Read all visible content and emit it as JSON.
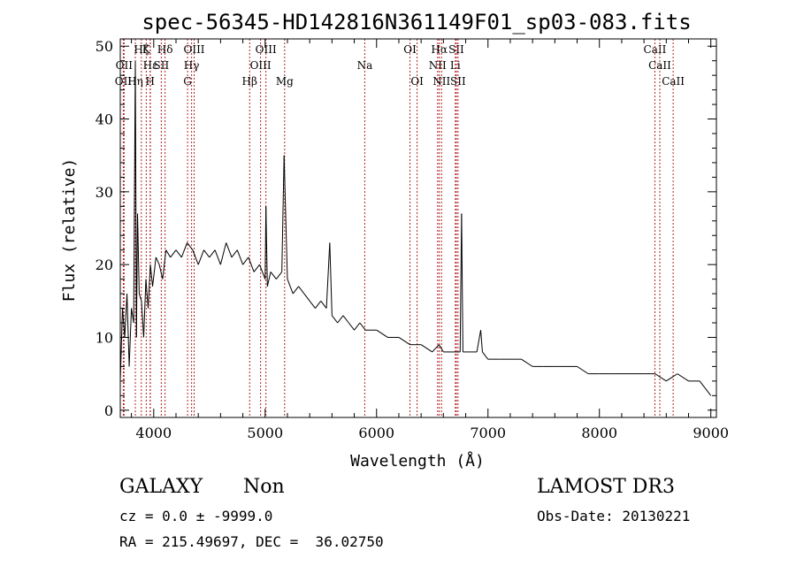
{
  "chart_data": {
    "type": "line",
    "title": "spec-56345-HD142816N361149F01_sp03-083.fits",
    "xlabel": "Wavelength (Å)",
    "ylabel": "Flux (relative)",
    "xlim": [
      3700,
      9050
    ],
    "ylim": [
      -1,
      51
    ],
    "xticks": [
      4000,
      5000,
      6000,
      7000,
      8000,
      9000
    ],
    "yticks": [
      0,
      10,
      20,
      30,
      40,
      50
    ],
    "xtick_labels": [
      "4000",
      "5000",
      "6000",
      "7000",
      "8000",
      "9000"
    ],
    "ytick_labels": [
      "0",
      "10",
      "20",
      "30",
      "40",
      "50"
    ],
    "series": [
      {
        "name": "flux",
        "x": [
          3700,
          3720,
          3740,
          3760,
          3780,
          3800,
          3820,
          3835,
          3845,
          3855,
          3870,
          3890,
          3910,
          3930,
          3950,
          3970,
          3990,
          4020,
          4050,
          4080,
          4110,
          4150,
          4200,
          4250,
          4300,
          4350,
          4400,
          4450,
          4500,
          4550,
          4600,
          4650,
          4700,
          4750,
          4800,
          4850,
          4900,
          4950,
          5000,
          5007,
          5020,
          5050,
          5100,
          5150,
          5170,
          5200,
          5250,
          5300,
          5350,
          5400,
          5450,
          5500,
          5550,
          5580,
          5600,
          5650,
          5700,
          5750,
          5800,
          5850,
          5900,
          5950,
          6000,
          6100,
          6200,
          6300,
          6400,
          6500,
          6560,
          6600,
          6700,
          6750,
          6763,
          6775,
          6800,
          6850,
          6900,
          6935,
          6950,
          7000,
          7100,
          7200,
          7300,
          7400,
          7500,
          7600,
          7700,
          7800,
          7900,
          8000,
          8100,
          8200,
          8300,
          8400,
          8500,
          8600,
          8700,
          8800,
          8900,
          8950,
          9000
        ],
        "y": [
          4,
          14,
          10,
          16,
          6,
          14,
          12,
          48,
          10,
          27,
          16,
          15,
          10,
          18,
          14,
          20,
          17,
          21,
          20,
          18,
          22,
          21,
          22,
          21,
          23,
          22,
          20,
          22,
          21,
          22,
          20,
          23,
          21,
          22,
          20,
          21,
          19,
          20,
          18,
          28,
          17,
          19,
          18,
          19,
          35,
          18,
          16,
          17,
          16,
          15,
          14,
          15,
          14,
          23,
          13,
          12,
          13,
          12,
          11,
          12,
          11,
          11,
          11,
          10,
          10,
          9,
          9,
          8,
          9,
          8,
          8,
          8,
          27,
          8,
          8,
          8,
          8,
          11,
          8,
          7,
          7,
          7,
          7,
          6,
          6,
          6,
          6,
          6,
          5,
          5,
          5,
          5,
          5,
          5,
          5,
          4,
          5,
          4,
          4,
          3,
          2
        ]
      }
    ],
    "line_marks": [
      {
        "wavelength": 3727,
        "label": "OII",
        "row": 2
      },
      {
        "wavelength": 3734,
        "label": "OII",
        "row": 1
      },
      {
        "wavelength": 3835,
        "label": "Hη",
        "row": 2
      },
      {
        "wavelength": 3889,
        "label": "Hζ",
        "row": 0
      },
      {
        "wavelength": 3933,
        "label": "K",
        "row": 0
      },
      {
        "wavelength": 3968,
        "label": "H",
        "row": 2
      },
      {
        "wavelength": 3970,
        "label": "Hε",
        "row": 1
      },
      {
        "wavelength": 4068,
        "label": "SII",
        "row": 1
      },
      {
        "wavelength": 4102,
        "label": "Hδ",
        "row": 0
      },
      {
        "wavelength": 4304,
        "label": "G",
        "row": 2
      },
      {
        "wavelength": 4340,
        "label": "Hγ",
        "row": 1
      },
      {
        "wavelength": 4363,
        "label": "OIII",
        "row": 0
      },
      {
        "wavelength": 4861,
        "label": "Hβ",
        "row": 2
      },
      {
        "wavelength": 4959,
        "label": "OIII",
        "row": 1
      },
      {
        "wavelength": 5007,
        "label": "OIII",
        "row": 0
      },
      {
        "wavelength": 5175,
        "label": "Mg",
        "row": 2
      },
      {
        "wavelength": 5894,
        "label": "Na",
        "row": 1
      },
      {
        "wavelength": 6300,
        "label": "OI",
        "row": 0
      },
      {
        "wavelength": 6364,
        "label": "OI",
        "row": 2
      },
      {
        "wavelength": 6548,
        "label": "NII",
        "row": 1
      },
      {
        "wavelength": 6563,
        "label": "Hα",
        "row": 0
      },
      {
        "wavelength": 6583,
        "label": "NII",
        "row": 2
      },
      {
        "wavelength": 6707,
        "label": "Li",
        "row": 1
      },
      {
        "wavelength": 6716,
        "label": "SII",
        "row": 0
      },
      {
        "wavelength": 6731,
        "label": "SII",
        "row": 2
      },
      {
        "wavelength": 8498,
        "label": "CaII",
        "row": 0
      },
      {
        "wavelength": 8542,
        "label": "CaII",
        "row": 1
      },
      {
        "wavelength": 8662,
        "label": "CaII",
        "row": 2
      }
    ],
    "colors": {
      "spectrum": "#000000",
      "line_marks": "#b22222",
      "axes": "#000000"
    }
  },
  "info": {
    "class": "GALAXY",
    "subclass": "Non",
    "survey": "LAMOST DR3",
    "cz": "cz = 0.0 ± -9999.0",
    "obs_date": "Obs-Date: 20130221",
    "radec": "RA = 215.49697, DEC =  36.02750"
  }
}
